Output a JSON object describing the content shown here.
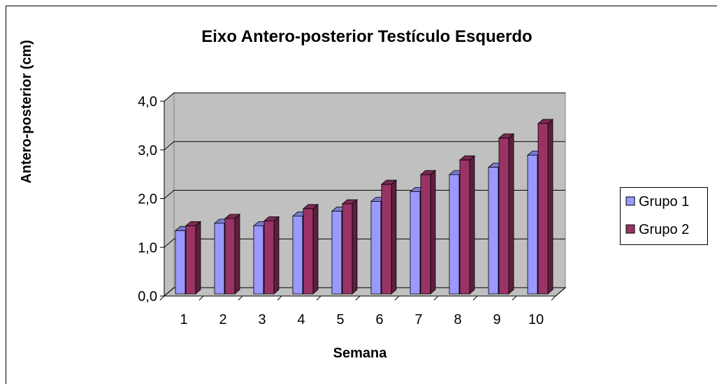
{
  "chart_data": {
    "type": "bar3d",
    "title": "Eixo Antero-posterior Testículo Esquerdo",
    "x_label": "Semana",
    "y_label": "Antero-posterior (cm)",
    "categories": [
      "1",
      "2",
      "3",
      "4",
      "5",
      "6",
      "7",
      "8",
      "9",
      "10"
    ],
    "series": [
      {
        "name": "Grupo 1",
        "color": "#9999ff",
        "values": [
          1.3,
          1.45,
          1.4,
          1.6,
          1.7,
          1.9,
          2.1,
          2.45,
          2.6,
          2.85
        ]
      },
      {
        "name": "Grupo 2",
        "color": "#993366",
        "values": [
          1.4,
          1.55,
          1.5,
          1.75,
          1.85,
          2.25,
          2.45,
          2.75,
          3.2,
          3.5
        ]
      }
    ],
    "ylim": [
      0,
      4
    ],
    "yticks": [
      {
        "value": 0,
        "label": "0,0"
      },
      {
        "value": 1,
        "label": "1,0"
      },
      {
        "value": 2,
        "label": "2,0"
      },
      {
        "value": 3,
        "label": "3,0"
      },
      {
        "value": 4,
        "label": "4,0"
      }
    ],
    "grid": true,
    "legend": "right"
  }
}
